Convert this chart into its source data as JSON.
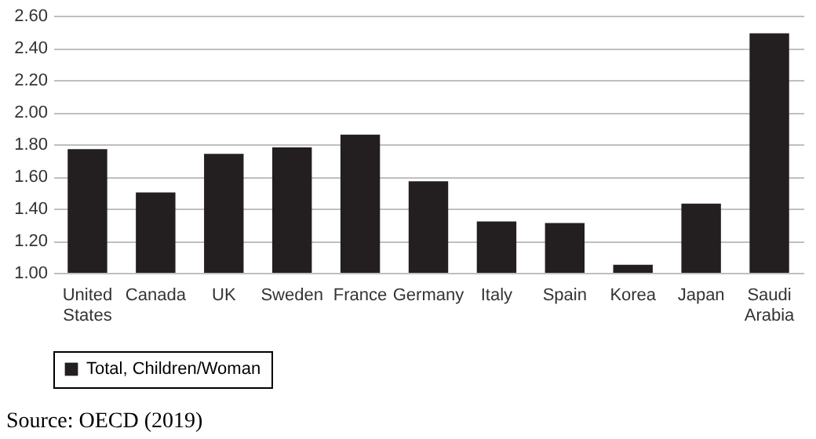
{
  "chart_data": {
    "type": "bar",
    "categories": [
      "United States",
      "Canada",
      "UK",
      "Sweden",
      "France",
      "Germany",
      "Italy",
      "Spain",
      "Korea",
      "Japan",
      "Saudi Arabia"
    ],
    "series": [
      {
        "name": "Total, Children/Woman",
        "color": "#231f20",
        "values": [
          1.77,
          1.5,
          1.74,
          1.78,
          1.86,
          1.57,
          1.32,
          1.31,
          1.05,
          1.43,
          2.49
        ]
      }
    ],
    "ylim": [
      1.0,
      2.6
    ],
    "yticks": [
      {
        "value": 1.0,
        "label": "1.00"
      },
      {
        "value": 1.2,
        "label": "1.20"
      },
      {
        "value": 1.4,
        "label": "1.40"
      },
      {
        "value": 1.6,
        "label": "1.60"
      },
      {
        "value": 1.8,
        "label": "1.80"
      },
      {
        "value": 2.0,
        "label": "2.00"
      },
      {
        "value": 2.2,
        "label": "2.20"
      },
      {
        "value": 2.4,
        "label": "2.40"
      },
      {
        "value": 2.6,
        "label": "2.60"
      }
    ],
    "grid": "y",
    "legend": "bottom",
    "annotations": [
      "Source: OECD (2019)"
    ]
  }
}
